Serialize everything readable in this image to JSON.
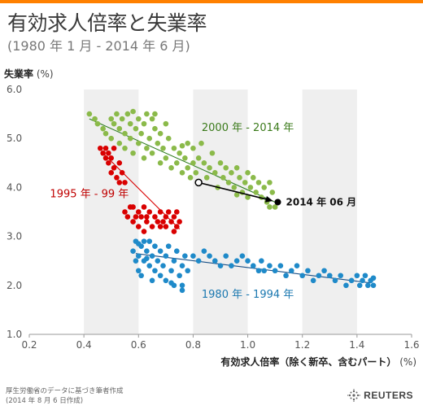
{
  "header": {
    "title": "有効求人倍率と失業率",
    "subtitle": "(1980 年 1 月 - 2014 年 6 月)"
  },
  "colors": {
    "accent_bar": "#ff8000",
    "band": "#efefef",
    "green": "#8bba4a",
    "green_line": "#2e7d1f",
    "green_label": "#3a7a1a",
    "red": "#d90000",
    "red_label": "#c00000",
    "blue": "#1f8ac9",
    "blue_line": "#174f86",
    "blue_label": "#1b78b0",
    "arrow": "#000000"
  },
  "chart_data": {
    "type": "scatter",
    "title": "有効求人倍率と失業率",
    "subtitle": "(1980 年 1 月 - 2014 年 6 月)",
    "xlabel": "有効求人倍率（除く新卒、含むパート）",
    "xlabel_unit": "(%)",
    "ylabel": "失業率",
    "ylabel_unit": "(%)",
    "xlim": [
      0.2,
      1.6
    ],
    "ylim": [
      1.0,
      6.0
    ],
    "xticks": [
      "0.2",
      "0.4",
      "0.6",
      "0.8",
      "1.0",
      "1.2",
      "1.4",
      "1.6"
    ],
    "yticks": [
      "1.0",
      "2.0",
      "3.0",
      "4.0",
      "5.0",
      "6.0"
    ],
    "shaded_x_bands": [
      [
        0.4,
        0.6
      ],
      [
        0.8,
        1.0
      ],
      [
        1.2,
        1.4
      ]
    ],
    "grid": false,
    "series": [
      {
        "name": "2000 年 - 2014 年",
        "color": "green",
        "trend": [
          [
            0.42,
            5.4
          ],
          [
            1.1,
            3.7
          ]
        ],
        "points": [
          [
            0.42,
            5.5
          ],
          [
            0.44,
            5.4
          ],
          [
            0.45,
            5.3
          ],
          [
            0.47,
            5.2
          ],
          [
            0.48,
            5.1
          ],
          [
            0.5,
            5.4
          ],
          [
            0.5,
            5.0
          ],
          [
            0.51,
            5.3
          ],
          [
            0.52,
            5.5
          ],
          [
            0.53,
            5.2
          ],
          [
            0.53,
            4.9
          ],
          [
            0.54,
            5.4
          ],
          [
            0.55,
            5.1
          ],
          [
            0.55,
            4.8
          ],
          [
            0.56,
            5.5
          ],
          [
            0.57,
            5.3
          ],
          [
            0.57,
            5.0
          ],
          [
            0.58,
            4.7
          ],
          [
            0.59,
            5.2
          ],
          [
            0.6,
            5.4
          ],
          [
            0.6,
            4.9
          ],
          [
            0.61,
            5.1
          ],
          [
            0.62,
            5.3
          ],
          [
            0.62,
            4.6
          ],
          [
            0.63,
            5.5
          ],
          [
            0.63,
            4.8
          ],
          [
            0.64,
            5.0
          ],
          [
            0.65,
            5.4
          ],
          [
            0.65,
            4.7
          ],
          [
            0.66,
            5.2
          ],
          [
            0.67,
            4.9
          ],
          [
            0.68,
            4.5
          ],
          [
            0.68,
            5.1
          ],
          [
            0.69,
            4.8
          ],
          [
            0.7,
            5.3
          ],
          [
            0.7,
            4.6
          ],
          [
            0.71,
            5.0
          ],
          [
            0.72,
            4.4
          ],
          [
            0.73,
            4.8
          ],
          [
            0.74,
            4.5
          ],
          [
            0.75,
            4.7
          ],
          [
            0.76,
            4.3
          ],
          [
            0.77,
            4.6
          ],
          [
            0.78,
            4.4
          ],
          [
            0.78,
            4.9
          ],
          [
            0.79,
            4.2
          ],
          [
            0.8,
            4.5
          ],
          [
            0.8,
            4.8
          ],
          [
            0.81,
            4.3
          ],
          [
            0.82,
            4.6
          ],
          [
            0.83,
            4.9
          ],
          [
            0.84,
            4.5
          ],
          [
            0.85,
            4.2
          ],
          [
            0.86,
            4.4
          ],
          [
            0.87,
            4.7
          ],
          [
            0.88,
            4.3
          ],
          [
            0.89,
            4.0
          ],
          [
            0.9,
            4.5
          ],
          [
            0.91,
            4.2
          ],
          [
            0.92,
            4.4
          ],
          [
            0.93,
            4.1
          ],
          [
            0.94,
            4.3
          ],
          [
            0.95,
            4.0
          ],
          [
            0.96,
            4.4
          ],
          [
            0.97,
            4.2
          ],
          [
            0.98,
            3.9
          ],
          [
            0.99,
            4.1
          ],
          [
            1.0,
            4.3
          ],
          [
            1.0,
            3.8
          ],
          [
            1.01,
            4.0
          ],
          [
            1.02,
            4.2
          ],
          [
            1.03,
            3.9
          ],
          [
            1.04,
            4.1
          ],
          [
            1.05,
            3.8
          ],
          [
            1.06,
            4.0
          ],
          [
            1.07,
            3.7
          ],
          [
            1.08,
            4.1
          ],
          [
            1.08,
            3.6
          ],
          [
            1.09,
            3.9
          ],
          [
            1.1,
            3.6
          ],
          [
            0.58,
            5.55
          ],
          [
            0.66,
            5.5
          ],
          [
            0.76,
            4.85
          ],
          [
            0.96,
            3.85
          ]
        ]
      },
      {
        "name": "1995 年 - 99 年",
        "color": "red",
        "trend": [
          [
            0.47,
            4.7
          ],
          [
            0.75,
            3.15
          ]
        ],
        "points": [
          [
            0.46,
            4.8
          ],
          [
            0.47,
            4.7
          ],
          [
            0.48,
            4.8
          ],
          [
            0.48,
            4.6
          ],
          [
            0.49,
            4.5
          ],
          [
            0.49,
            4.7
          ],
          [
            0.5,
            4.3
          ],
          [
            0.5,
            4.6
          ],
          [
            0.51,
            4.4
          ],
          [
            0.51,
            4.8
          ],
          [
            0.52,
            4.2
          ],
          [
            0.53,
            4.5
          ],
          [
            0.54,
            4.3
          ],
          [
            0.55,
            4.1
          ],
          [
            0.55,
            3.5
          ],
          [
            0.56,
            3.4
          ],
          [
            0.57,
            3.6
          ],
          [
            0.58,
            3.3
          ],
          [
            0.58,
            3.6
          ],
          [
            0.59,
            3.4
          ],
          [
            0.6,
            3.2
          ],
          [
            0.6,
            3.5
          ],
          [
            0.61,
            3.4
          ],
          [
            0.62,
            3.6
          ],
          [
            0.62,
            3.1
          ],
          [
            0.63,
            3.4
          ],
          [
            0.63,
            3.3
          ],
          [
            0.64,
            3.5
          ],
          [
            0.65,
            3.2
          ],
          [
            0.66,
            3.4
          ],
          [
            0.67,
            3.3
          ],
          [
            0.68,
            3.5
          ],
          [
            0.68,
            3.2
          ],
          [
            0.69,
            3.3
          ],
          [
            0.7,
            3.4
          ],
          [
            0.7,
            3.2
          ],
          [
            0.71,
            3.5
          ],
          [
            0.72,
            3.3
          ],
          [
            0.73,
            3.1
          ],
          [
            0.73,
            3.4
          ],
          [
            0.74,
            3.2
          ],
          [
            0.74,
            3.5
          ],
          [
            0.75,
            3.3
          ],
          [
            0.53,
            4.1
          ]
        ]
      },
      {
        "name": "1980 年 - 1994 年",
        "color": "blue",
        "trend": [
          [
            0.59,
            2.65
          ],
          [
            1.45,
            2.05
          ]
        ],
        "points": [
          [
            0.58,
            2.7
          ],
          [
            0.59,
            2.5
          ],
          [
            0.59,
            2.9
          ],
          [
            0.6,
            2.6
          ],
          [
            0.6,
            2.3
          ],
          [
            0.61,
            2.8
          ],
          [
            0.62,
            2.5
          ],
          [
            0.62,
            2.9
          ],
          [
            0.63,
            2.7
          ],
          [
            0.64,
            2.4
          ],
          [
            0.64,
            2.9
          ],
          [
            0.65,
            2.6
          ],
          [
            0.66,
            2.8
          ],
          [
            0.66,
            2.3
          ],
          [
            0.67,
            2.5
          ],
          [
            0.68,
            2.7
          ],
          [
            0.68,
            2.2
          ],
          [
            0.69,
            2.4
          ],
          [
            0.7,
            2.6
          ],
          [
            0.7,
            2.1
          ],
          [
            0.71,
            2.8
          ],
          [
            0.72,
            2.3
          ],
          [
            0.73,
            2.5
          ],
          [
            0.73,
            2.0
          ],
          [
            0.74,
            2.7
          ],
          [
            0.75,
            2.2
          ],
          [
            0.76,
            1.9
          ],
          [
            0.76,
            2.4
          ],
          [
            0.77,
            2.6
          ],
          [
            0.78,
            2.3
          ],
          [
            0.8,
            2.6
          ],
          [
            0.82,
            2.5
          ],
          [
            0.84,
            2.7
          ],
          [
            0.86,
            2.6
          ],
          [
            0.88,
            2.5
          ],
          [
            0.9,
            2.4
          ],
          [
            0.92,
            2.6
          ],
          [
            0.94,
            2.4
          ],
          [
            0.96,
            2.5
          ],
          [
            0.98,
            2.6
          ],
          [
            1.0,
            2.5
          ],
          [
            1.02,
            2.4
          ],
          [
            1.04,
            2.3
          ],
          [
            1.05,
            2.5
          ],
          [
            1.06,
            2.3
          ],
          [
            1.08,
            2.4
          ],
          [
            1.1,
            2.3
          ],
          [
            1.12,
            2.4
          ],
          [
            1.14,
            2.2
          ],
          [
            1.16,
            2.3
          ],
          [
            1.18,
            2.4
          ],
          [
            1.2,
            2.2
          ],
          [
            1.22,
            2.3
          ],
          [
            1.24,
            2.1
          ],
          [
            1.26,
            2.2
          ],
          [
            1.28,
            2.3
          ],
          [
            1.3,
            2.2
          ],
          [
            1.32,
            2.1
          ],
          [
            1.34,
            2.2
          ],
          [
            1.36,
            2.0
          ],
          [
            1.38,
            2.1
          ],
          [
            1.4,
            2.2
          ],
          [
            1.41,
            2.0
          ],
          [
            1.42,
            2.1
          ],
          [
            1.43,
            2.2
          ],
          [
            1.44,
            2.0
          ],
          [
            1.45,
            2.1
          ],
          [
            1.46,
            2.0
          ],
          [
            1.46,
            2.15
          ],
          [
            0.61,
            2.2
          ],
          [
            0.65,
            2.1
          ],
          [
            0.72,
            2.05
          ],
          [
            0.76,
            2.0
          ],
          [
            0.6,
            2.85
          ],
          [
            0.63,
            2.55
          ]
        ]
      }
    ],
    "annotation": {
      "from": [
        0.82,
        4.1
      ],
      "to": [
        1.11,
        3.7
      ],
      "label": "2014 年 06 月"
    }
  },
  "footer": {
    "source": "厚生労働省のデータに基づき筆者作成",
    "date_note": "(2014 年 8 月 6 日作成)",
    "brand": "REUTERS"
  }
}
